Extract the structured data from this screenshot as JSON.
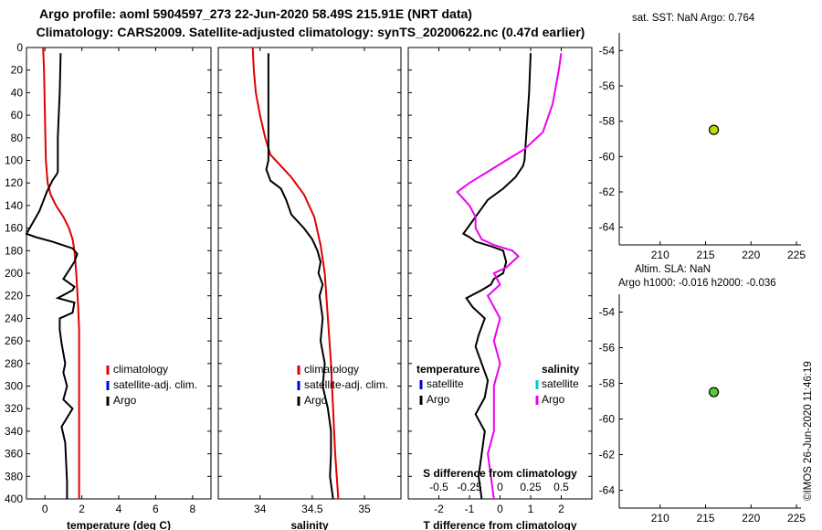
{
  "title": {
    "line1": "Argo profile: aoml 5904597_273 22-Jun-2020 58.49S 215.91E (NRT data)",
    "line2": "Climatology: CARS2009. Satellite-adjusted climatology: synTS_20200622.nc (0.47d earlier)"
  },
  "colors": {
    "climatology": "#e00000",
    "satellite_adj": "#0000e0",
    "argo": "#000000",
    "sal_diff": "#ee00ee",
    "sat_sal": "#00cccc",
    "marker_top": "#b8e000",
    "marker_bottom": "#55cc33"
  },
  "chart_data": [
    {
      "type": "line",
      "id": "temperature",
      "xlabel": "temperature (deg C)",
      "xlim": [
        -1,
        9
      ],
      "xticks": [
        0,
        2,
        4,
        6,
        8
      ],
      "ylim": [
        400,
        0
      ],
      "yticks": [
        0,
        20,
        40,
        60,
        80,
        100,
        120,
        140,
        160,
        180,
        200,
        220,
        240,
        260,
        280,
        300,
        320,
        340,
        360,
        380,
        400
      ],
      "legend": [
        "climatology",
        "satellite-adj. clim.",
        "Argo"
      ],
      "series": [
        {
          "name": "climatology",
          "color": "#e00000",
          "x": [
            -0.1,
            -0.05,
            0.0,
            0.05,
            0.15,
            0.3,
            0.6,
            1.0,
            1.3,
            1.5,
            1.6,
            1.7,
            1.8,
            1.85,
            1.85,
            1.85,
            1.85,
            1.85,
            1.85,
            1.85
          ],
          "y": [
            0,
            20,
            60,
            100,
            120,
            130,
            140,
            150,
            160,
            170,
            180,
            200,
            230,
            250,
            280,
            300,
            320,
            350,
            380,
            400
          ]
        },
        {
          "name": "Argo",
          "color": "#000000",
          "x": [
            0.85,
            0.8,
            0.75,
            0.7,
            0.7,
            0.65,
            0.4,
            0.1,
            -0.3,
            -1.0,
            -0.5,
            0.4,
            1.5,
            1.75,
            1.6,
            1.0,
            1.6,
            1.5,
            0.7,
            1.6,
            1.5,
            0.8,
            0.8,
            0.9,
            1.1,
            1.0,
            1.2,
            1.0,
            1.5,
            0.9,
            1.1,
            1.2,
            1.2
          ],
          "y": [
            5,
            40,
            60,
            80,
            110,
            112,
            118,
            128,
            145,
            165,
            168,
            172,
            178,
            183,
            190,
            205,
            212,
            215,
            222,
            226,
            235,
            240,
            250,
            262,
            280,
            288,
            300,
            312,
            320,
            336,
            350,
            385,
            400
          ]
        }
      ]
    },
    {
      "type": "line",
      "id": "salinity",
      "xlabel": "salinity",
      "xlim": [
        33.6,
        35.35
      ],
      "xticks": [
        34,
        34.5,
        35
      ],
      "xtick_labels": [
        "34",
        "34.5",
        "35"
      ],
      "ylim": [
        400,
        0
      ],
      "legend": [
        "climatology",
        "satellite-adj. clim.",
        "Argo"
      ],
      "series": [
        {
          "name": "climatology",
          "color": "#e00000",
          "x": [
            33.93,
            33.94,
            33.96,
            34.0,
            34.05,
            34.1,
            34.2,
            34.3,
            34.42,
            34.52,
            34.58,
            34.62,
            34.65,
            34.68,
            34.7,
            34.72,
            34.75
          ],
          "y": [
            0,
            20,
            40,
            60,
            80,
            95,
            105,
            115,
            130,
            150,
            175,
            200,
            240,
            280,
            320,
            360,
            400
          ]
        },
        {
          "name": "Argo",
          "color": "#000000",
          "x": [
            34.08,
            34.08,
            34.08,
            34.08,
            34.06,
            34.1,
            34.2,
            34.25,
            34.3,
            34.42,
            34.5,
            34.55,
            34.58,
            34.56,
            34.6,
            34.57,
            34.6,
            34.58,
            34.62,
            34.6,
            34.65,
            34.68,
            34.68,
            34.67,
            34.7
          ],
          "y": [
            5,
            50,
            80,
            100,
            108,
            118,
            125,
            135,
            148,
            160,
            170,
            180,
            190,
            200,
            210,
            220,
            240,
            260,
            280,
            300,
            320,
            340,
            360,
            380,
            400
          ]
        }
      ]
    },
    {
      "type": "line",
      "id": "difference",
      "xlabel": "T difference from climatology",
      "xlabel_top": "S difference from climatology",
      "xlim": [
        -3,
        3
      ],
      "xticks": [
        -2,
        -1,
        0,
        1,
        2
      ],
      "sal_xticks": [
        -0.5,
        -0.25,
        0,
        0.25,
        0.5
      ],
      "sal_xtick_labels": [
        "-0.5",
        "-0.25",
        "0",
        "0.25",
        "0.5"
      ],
      "ylim": [
        400,
        0
      ],
      "legend_title_t": "temperature",
      "legend_title_s": "salinity",
      "legend_t": [
        "satellite",
        "Argo"
      ],
      "legend_s": [
        "satellite",
        "Argo"
      ],
      "series": [
        {
          "name": "T diff Argo",
          "color": "#000000",
          "x": [
            1.0,
            0.95,
            0.85,
            0.8,
            0.75,
            0.5,
            0.1,
            -0.4,
            -0.8,
            -1.2,
            -1.0,
            -0.8,
            -0.3,
            0.1,
            0.2,
            0.1,
            -0.2,
            -0.3,
            -0.6,
            -1.1,
            -0.9,
            -0.5,
            -0.7,
            -0.8,
            -0.6,
            -0.4,
            -0.5,
            -0.8,
            -0.5,
            -0.6,
            -0.7,
            -0.6
          ],
          "y": [
            5,
            40,
            80,
            100,
            105,
            115,
            125,
            135,
            150,
            165,
            168,
            172,
            176,
            180,
            190,
            200,
            205,
            210,
            215,
            222,
            230,
            240,
            255,
            265,
            280,
            295,
            310,
            325,
            340,
            360,
            380,
            400
          ]
        },
        {
          "name": "S diff Argo",
          "color": "#ee00ee",
          "x": [
            0.5,
            0.48,
            0.43,
            0.35,
            0.2,
            0.05,
            -0.1,
            -0.25,
            -0.35,
            -0.25,
            -0.2,
            -0.2,
            -0.15,
            -0.05,
            0.1,
            0.15,
            0.1,
            0.05,
            -0.05,
            0.0,
            -0.1,
            0.0,
            -0.05,
            0.0,
            -0.05,
            -0.05,
            -0.05,
            -0.1,
            -0.05
          ],
          "y": [
            5,
            20,
            50,
            75,
            90,
            100,
            110,
            120,
            128,
            140,
            150,
            160,
            170,
            175,
            180,
            185,
            190,
            195,
            200,
            210,
            220,
            240,
            260,
            280,
            300,
            320,
            340,
            360,
            400
          ]
        }
      ]
    },
    {
      "type": "scatter",
      "id": "sst_map",
      "title": "sat. SST: NaN Argo: 0.764",
      "xlim": [
        205.5,
        225.5
      ],
      "xticks": [
        210,
        215,
        220,
        225
      ],
      "ylim": [
        -65,
        -53
      ],
      "yticks": [
        -54,
        -56,
        -58,
        -60,
        -62,
        -64
      ],
      "points": [
        {
          "x": 215.91,
          "y": -58.49
        }
      ]
    },
    {
      "type": "scatter",
      "id": "sla_map",
      "title": "Altim. SLA: NaN",
      "subtitle": "Argo h1000: -0.016 h2000: -0.036",
      "xlim": [
        205.5,
        225.5
      ],
      "xticks": [
        210,
        215,
        220,
        225
      ],
      "ylim": [
        -65,
        -53
      ],
      "yticks": [
        -54,
        -56,
        -58,
        -60,
        -62,
        -64
      ],
      "points": [
        {
          "x": 215.91,
          "y": -58.49
        }
      ]
    }
  ],
  "footer": "©IMOS 26-Jun-2020 11:46:19"
}
